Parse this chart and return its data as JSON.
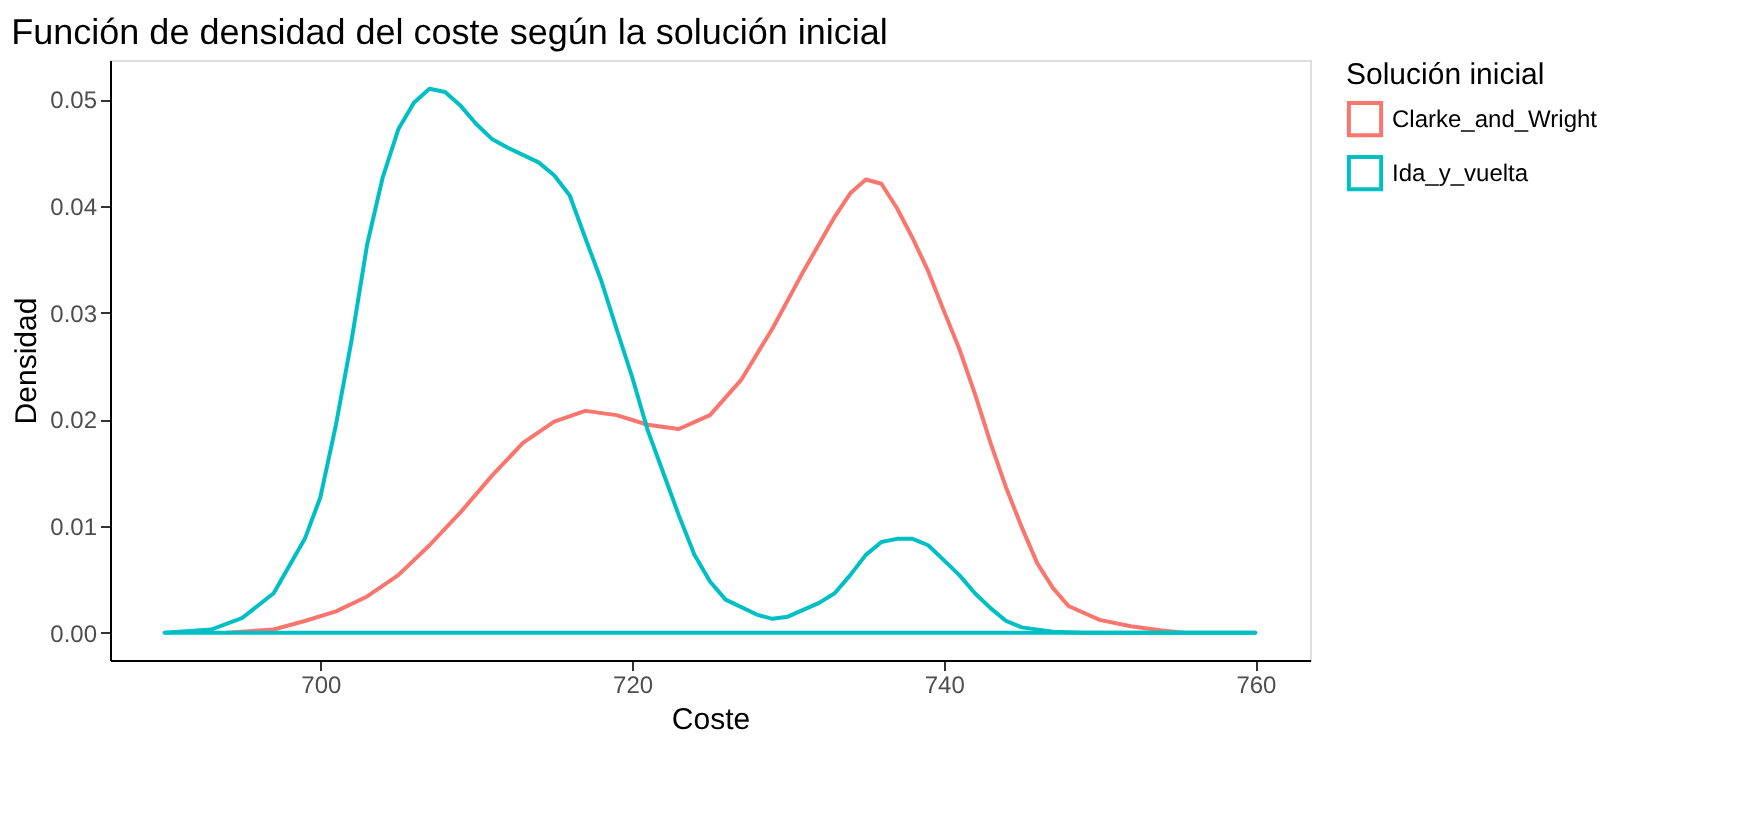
{
  "chart_data": {
    "type": "line",
    "title": "Función de densidad del coste según la solución inicial",
    "xlabel": "Coste",
    "ylabel": "Densidad",
    "legend_title": "Solución inicial",
    "series": [
      {
        "name": "Clarke_and_Wright",
        "color": "#f8766d",
        "x": [
          694,
          697,
          699,
          701,
          703,
          705,
          707,
          709,
          711,
          713,
          715,
          717,
          719,
          721,
          723,
          725,
          727,
          729,
          731,
          733,
          734,
          735,
          736,
          737,
          738,
          739,
          740,
          741,
          742,
          743,
          744,
          745,
          746,
          747,
          748,
          750,
          752,
          754,
          755.4
        ],
        "values": [
          0,
          0.0003,
          0.0011,
          0.002,
          0.0034,
          0.0054,
          0.0082,
          0.0113,
          0.0147,
          0.0178,
          0.0198,
          0.0208,
          0.0204,
          0.0195,
          0.0191,
          0.0204,
          0.0237,
          0.0285,
          0.0339,
          0.039,
          0.0412,
          0.0425,
          0.0421,
          0.0398,
          0.037,
          0.0339,
          0.0302,
          0.0266,
          0.0224,
          0.0178,
          0.0136,
          0.0099,
          0.0065,
          0.0042,
          0.0025,
          0.0012,
          0.0006,
          0.0002,
          0
        ]
      },
      {
        "name": "Ida_y_vuelta",
        "color": "#00bfc4",
        "x": [
          690,
          693,
          695,
          697,
          699,
          700,
          701,
          702,
          703,
          704,
          705,
          706,
          707,
          708,
          709,
          710,
          711,
          712,
          714,
          715,
          716,
          717,
          718,
          719,
          720,
          721,
          722,
          723,
          724,
          725,
          726,
          728,
          729,
          730,
          732,
          733,
          734,
          735,
          736,
          737,
          738,
          739,
          740,
          741,
          742,
          743,
          744,
          745,
          747,
          749,
          760
        ],
        "values": [
          0,
          0.0003,
          0.0014,
          0.0037,
          0.0088,
          0.0127,
          0.0195,
          0.0274,
          0.0364,
          0.0427,
          0.0472,
          0.0497,
          0.051,
          0.0507,
          0.0494,
          0.0477,
          0.0463,
          0.0455,
          0.0441,
          0.0429,
          0.041,
          0.037,
          0.0331,
          0.0285,
          0.024,
          0.019,
          0.015,
          0.011,
          0.0073,
          0.0048,
          0.0031,
          0.0017,
          0.0013,
          0.0015,
          0.0028,
          0.0037,
          0.0054,
          0.0073,
          0.0085,
          0.0088,
          0.0088,
          0.0082,
          0.0068,
          0.0054,
          0.0037,
          0.0023,
          0.0011,
          0.0005,
          0.0001,
          0,
          0
        ]
      }
    ],
    "xlim": [
      686.5,
      763.5
    ],
    "xticks": [
      700,
      720,
      740,
      760
    ],
    "ylim": [
      -0.00256,
      0.0537
    ],
    "yticks": [
      {
        "value": 0,
        "label": "0.00"
      },
      {
        "value": 0.01,
        "label": "0.01"
      },
      {
        "value": 0.02,
        "label": "0.02"
      },
      {
        "value": 0.03,
        "label": "0.03"
      },
      {
        "value": 0.04,
        "label": "0.04"
      },
      {
        "value": 0.05,
        "label": "0.05"
      }
    ],
    "ref_lines": [
      {
        "axis": "y",
        "value": 0,
        "color": "#00bfc4"
      }
    ],
    "grid": false,
    "legend": "right"
  }
}
